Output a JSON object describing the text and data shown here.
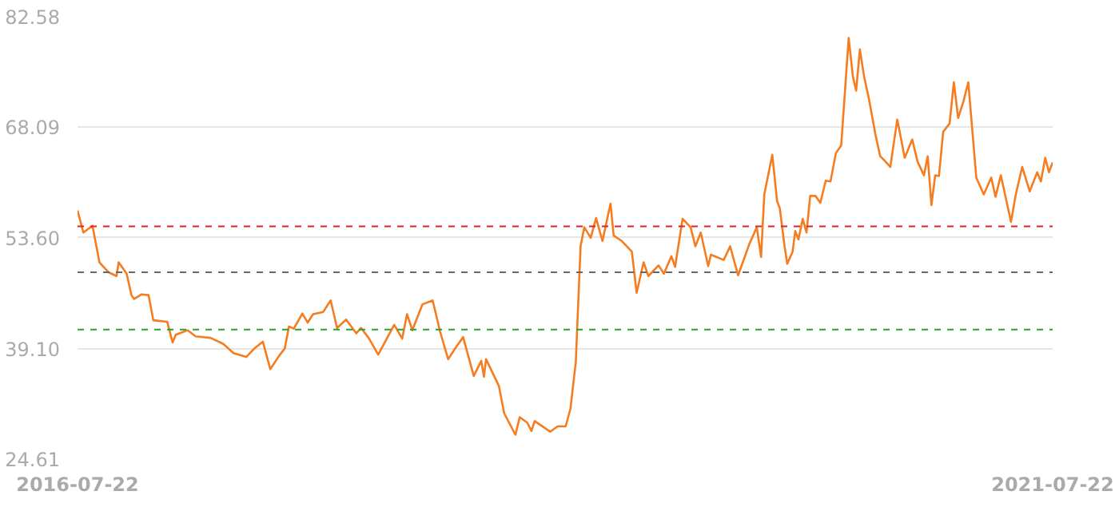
{
  "chart_data": {
    "type": "line",
    "x": [
      "2016-07-22",
      "2016-08-02",
      "2016-08-19",
      "2016-09-01",
      "2016-09-18",
      "2016-10-03",
      "2016-10-07",
      "2016-10-22",
      "2016-10-31",
      "2016-11-05",
      "2016-11-19",
      "2016-12-02",
      "2016-12-11",
      "2017-01-06",
      "2017-01-16",
      "2017-01-22",
      "2017-02-13",
      "2017-02-28",
      "2017-03-28",
      "2017-04-21",
      "2017-05-10",
      "2017-06-03",
      "2017-06-18",
      "2017-07-04",
      "2017-07-18",
      "2017-08-04",
      "2017-08-14",
      "2017-08-22",
      "2017-08-31",
      "2017-09-16",
      "2017-09-26",
      "2017-10-06",
      "2017-10-25",
      "2017-11-08",
      "2017-11-20",
      "2017-12-07",
      "2017-12-26",
      "2018-01-04",
      "2018-01-19",
      "2018-02-05",
      "2018-03-07",
      "2018-03-22",
      "2018-03-31",
      "2018-04-10",
      "2018-04-29",
      "2018-05-18",
      "2018-06-01",
      "2018-06-16",
      "2018-06-30",
      "2018-07-14",
      "2018-08-03",
      "2018-08-17",
      "2018-08-22",
      "2018-08-26",
      "2018-09-19",
      "2018-09-29",
      "2018-10-20",
      "2018-10-28",
      "2018-11-11",
      "2018-11-19",
      "2018-11-25",
      "2018-12-24",
      "2019-01-07",
      "2019-01-22",
      "2019-01-31",
      "2019-02-10",
      "2019-02-19",
      "2019-02-26",
      "2019-03-10",
      "2019-03-20",
      "2019-04-01",
      "2019-04-16",
      "2019-04-22",
      "2019-05-07",
      "2019-05-26",
      "2019-06-04",
      "2019-06-17",
      "2019-06-26",
      "2019-07-15",
      "2019-07-25",
      "2019-08-08",
      "2019-08-15",
      "2019-08-29",
      "2019-09-13",
      "2019-09-22",
      "2019-10-02",
      "2019-10-16",
      "2019-10-21",
      "2019-11-14",
      "2019-11-26",
      "2019-12-11",
      "2020-01-01",
      "2020-01-15",
      "2020-01-23",
      "2020-01-29",
      "2020-02-13",
      "2020-02-22",
      "2020-02-27",
      "2020-03-07",
      "2020-03-12",
      "2020-03-22",
      "2020-03-27",
      "2020-04-02",
      "2020-04-10",
      "2020-04-17",
      "2020-04-24",
      "2020-05-04",
      "2020-05-13",
      "2020-05-23",
      "2020-06-01",
      "2020-06-11",
      "2020-06-21",
      "2020-07-05",
      "2020-07-13",
      "2020-07-19",
      "2020-07-26",
      "2020-08-03",
      "2020-08-12",
      "2020-08-24",
      "2020-09-02",
      "2020-09-12",
      "2020-09-21",
      "2020-10-04",
      "2020-10-18",
      "2020-11-01",
      "2020-11-11",
      "2020-11-23",
      "2020-11-30",
      "2020-12-07",
      "2020-12-14",
      "2020-12-21",
      "2020-12-29",
      "2021-01-10",
      "2021-01-18",
      "2021-01-26",
      "2021-02-05",
      "2021-02-14",
      "2021-03-01",
      "2021-03-15",
      "2021-03-29",
      "2021-04-06",
      "2021-04-16",
      "2021-05-05",
      "2021-05-14",
      "2021-05-26",
      "2021-06-09",
      "2021-06-23",
      "2021-06-30",
      "2021-07-08",
      "2021-07-15",
      "2021-07-22"
    ],
    "series": [
      {
        "color": "#f57c1f",
        "values": [
          57.2,
          54.3,
          55.2,
          50.4,
          49.1,
          48.6,
          50.4,
          48.9,
          46.1,
          45.6,
          46.2,
          46.1,
          42.8,
          42.6,
          39.9,
          40.9,
          41.5,
          40.7,
          40.5,
          39.7,
          38.5,
          38.0,
          39.1,
          40.0,
          36.4,
          38.2,
          39.1,
          42.0,
          41.7,
          43.7,
          42.5,
          43.6,
          43.9,
          45.4,
          41.8,
          42.9,
          41.1,
          41.8,
          40.4,
          38.3,
          42.2,
          40.4,
          43.6,
          41.5,
          44.9,
          45.4,
          41.3,
          37.7,
          39.2,
          40.6,
          35.5,
          37.5,
          35.4,
          37.7,
          34.2,
          30.6,
          27.8,
          30.1,
          29.4,
          28.3,
          29.6,
          28.2,
          28.9,
          28.9,
          31.2,
          37.3,
          52.5,
          55.0,
          53.6,
          56.2,
          53.2,
          58.1,
          53.9,
          53.2,
          51.8,
          46.4,
          50.4,
          48.6,
          50.0,
          48.9,
          51.2,
          49.8,
          56.1,
          55.0,
          52.5,
          54.3,
          49.9,
          51.4,
          50.7,
          52.5,
          48.7,
          52.8,
          55.0,
          51.1,
          59.3,
          64.5,
          58.4,
          57.5,
          52.5,
          50.2,
          51.8,
          54.5,
          53.4,
          56.1,
          54.3,
          59.1,
          59.1,
          58.2,
          61.1,
          61.0,
          64.7,
          65.7,
          79.8,
          74.7,
          72.9,
          78.3,
          74.7,
          71.8,
          67.2,
          64.3,
          63.6,
          62.9,
          69.1,
          64.1,
          66.5,
          63.6,
          61.8,
          64.3,
          57.9,
          61.8,
          61.7,
          67.5,
          68.6,
          74.0,
          69.3,
          71.5,
          74.0,
          61.5,
          59.3,
          61.5,
          59.0,
          61.8,
          55.7,
          59.3,
          62.9,
          59.7,
          62.2,
          61.0,
          64.1,
          62.2,
          63.5
        ]
      }
    ],
    "xlim": [
      "2016-07-22",
      "2021-07-22"
    ],
    "xticks": [
      {
        "value": "2016-07-22",
        "label": "2016-07-22"
      },
      {
        "value": "2021-07-22",
        "label": "2021-07-22"
      }
    ],
    "ylim": [
      24.61,
      82.58
    ],
    "yticks": [
      24.61,
      {
        "value": 39.1,
        "label": "39.10"
      },
      {
        "value": 53.6,
        "label": "53.60"
      },
      68.09,
      82.58
    ],
    "grid": "y",
    "ref_lines": [
      {
        "axis": "y",
        "value": 55.1,
        "color": "#e02424",
        "line_style": "dashed"
      },
      {
        "axis": "y",
        "value": 49.1,
        "color": "#666666",
        "line_style": "dashed"
      },
      {
        "axis": "y",
        "value": 41.6,
        "color": "#1fa82a",
        "line_style": "dashed"
      }
    ]
  }
}
